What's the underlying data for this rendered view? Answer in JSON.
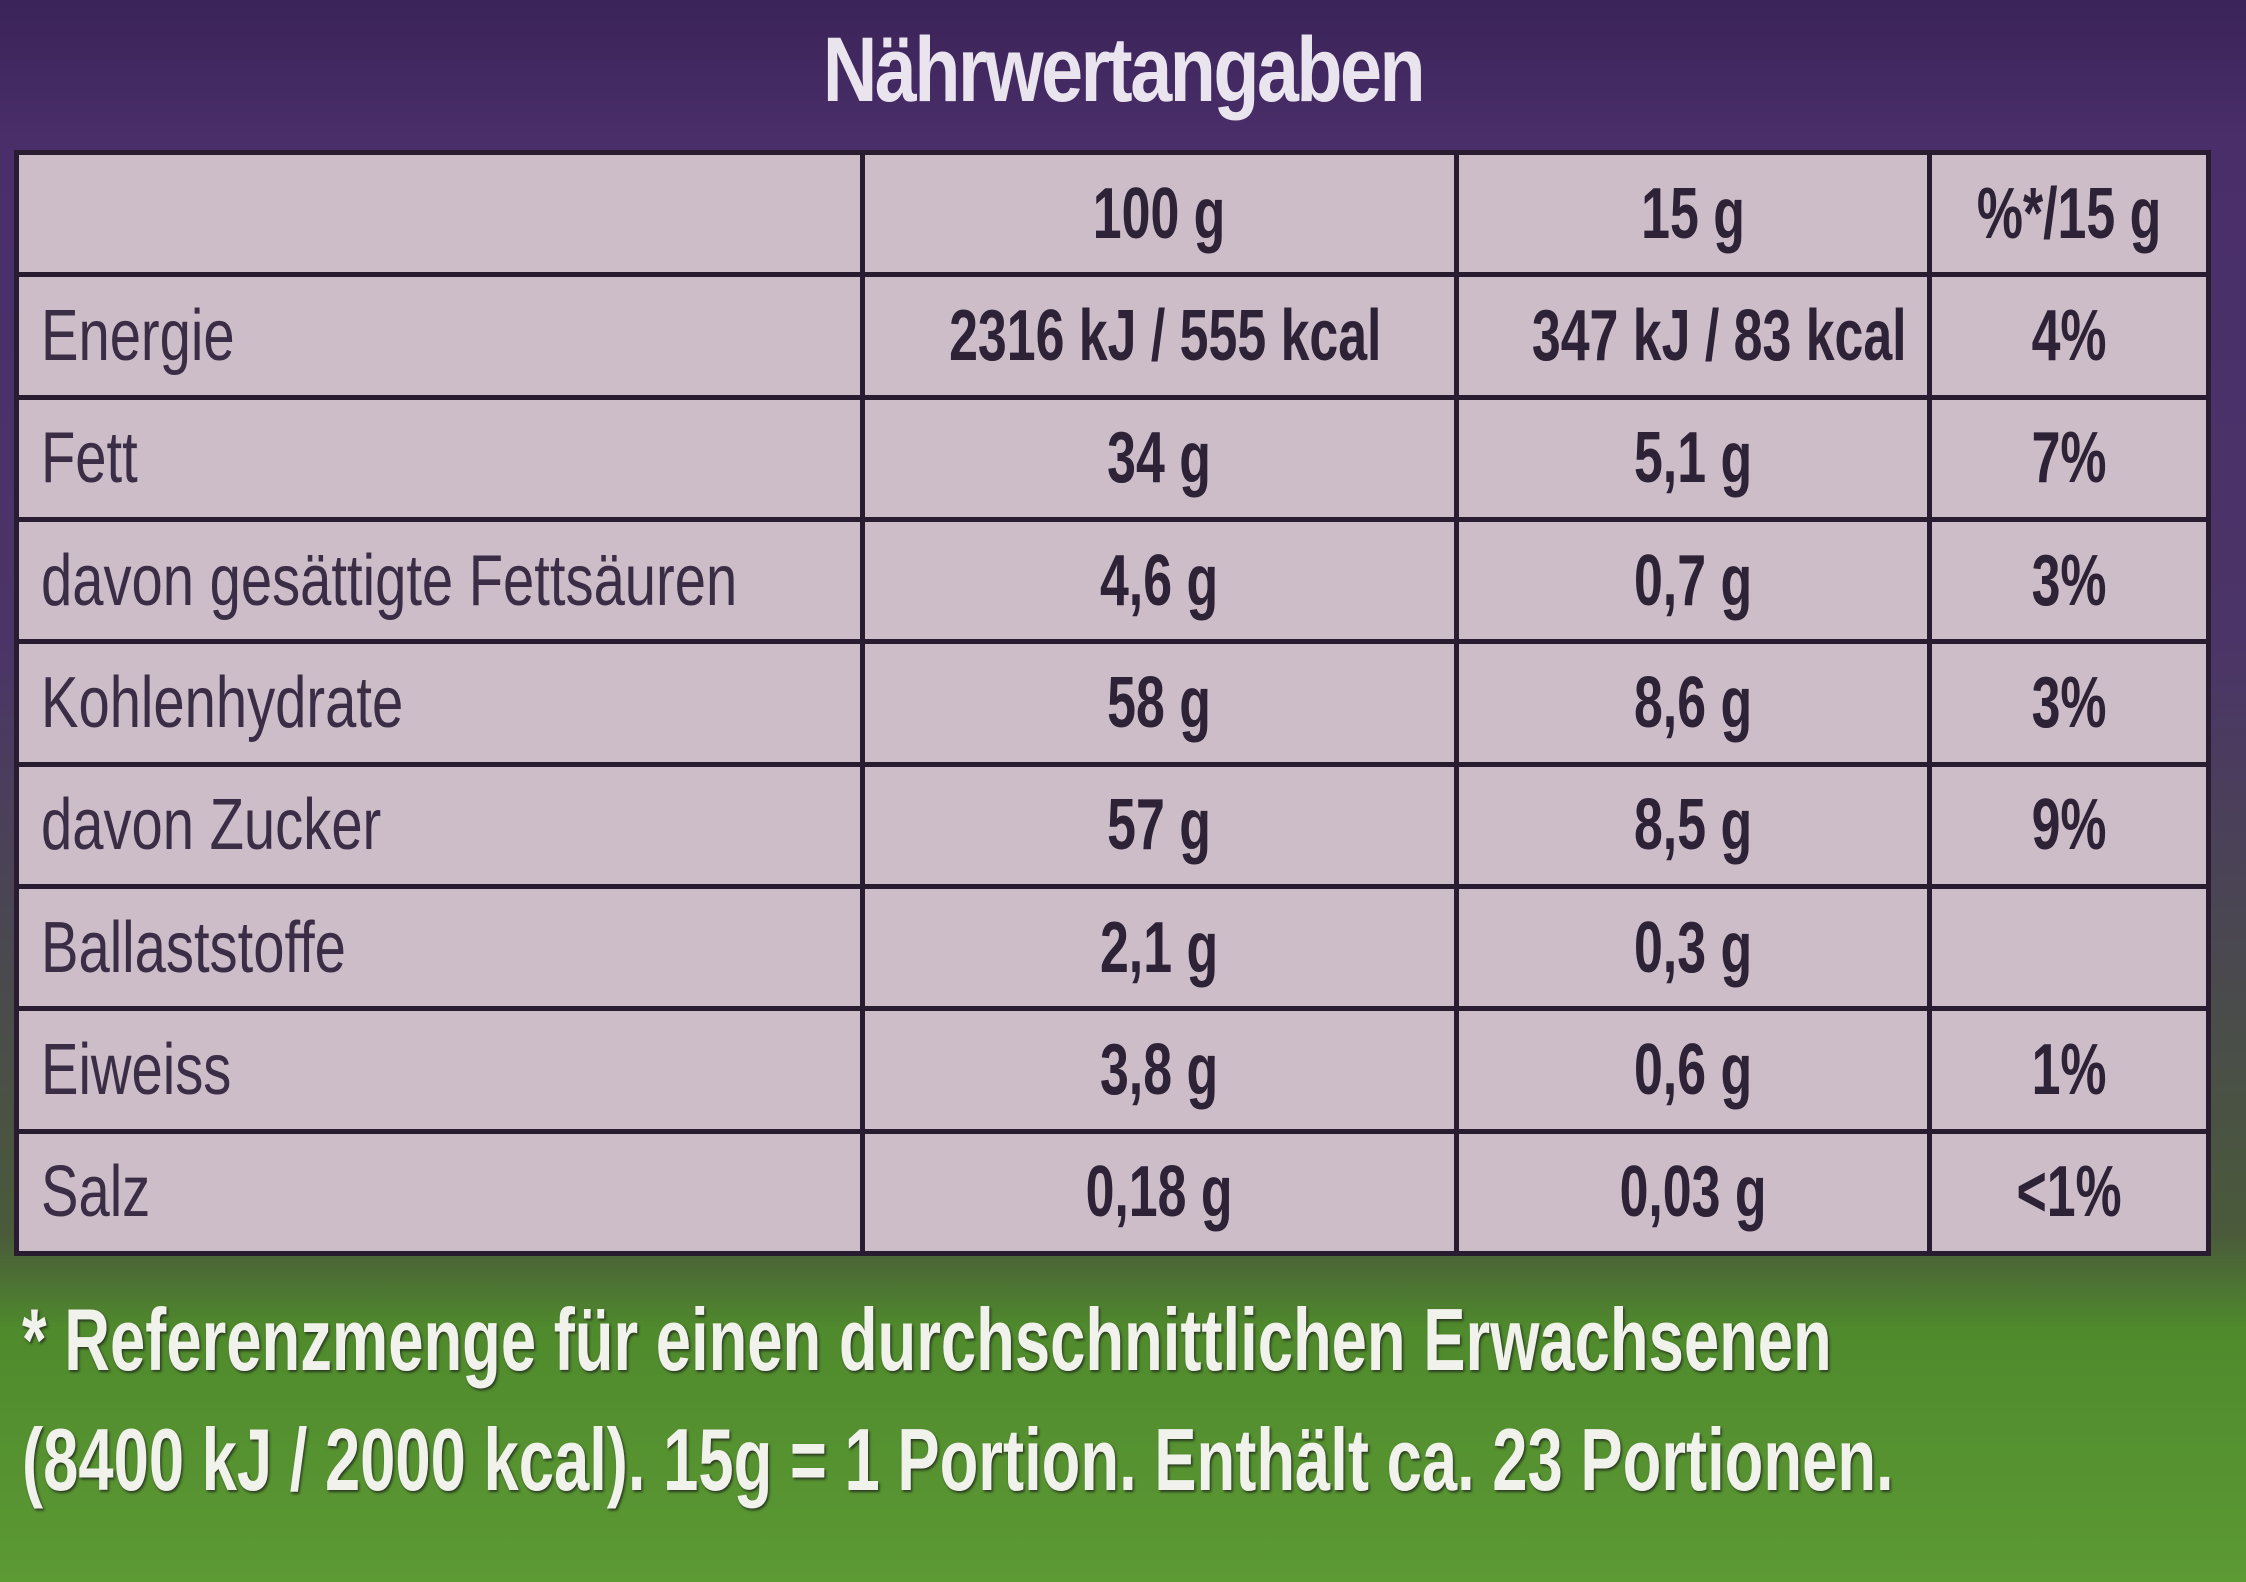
{
  "title": "Nährwertangaben",
  "table": {
    "headers": [
      "",
      "100 g",
      "15 g",
      "%*/15 g"
    ],
    "rows": [
      {
        "label": "Energie",
        "per100": "2316 kJ / 555 kcal",
        "per15": "347 kJ / 83 kcal",
        "ri": "4%"
      },
      {
        "label": "Fett",
        "per100": "34 g",
        "per15": "5,1 g",
        "ri": "7%"
      },
      {
        "label": "davon gesättigte Fettsäuren",
        "per100": "4,6 g",
        "per15": "0,7 g",
        "ri": "3%"
      },
      {
        "label": "Kohlenhydrate",
        "per100": "58 g",
        "per15": "8,6 g",
        "ri": "3%"
      },
      {
        "label": "davon Zucker",
        "per100": "57 g",
        "per15": "8,5 g",
        "ri": "9%"
      },
      {
        "label": "Ballaststoffe",
        "per100": "2,1 g",
        "per15": "0,3 g",
        "ri": ""
      },
      {
        "label": "Eiweiss",
        "per100": "3,8 g",
        "per15": "0,6 g",
        "ri": "1%"
      },
      {
        "label": "Salz",
        "per100": "0,18 g",
        "per15": "0,03 g",
        "ri": "<1%"
      }
    ]
  },
  "footer": {
    "line1": "* Referenzmenge für einen durchschnittlichen Erwachsenen",
    "line2": "(8400 kJ / 2000 kcal). 15g = 1 Portion. Enthält ca. 23 Portionen."
  }
}
